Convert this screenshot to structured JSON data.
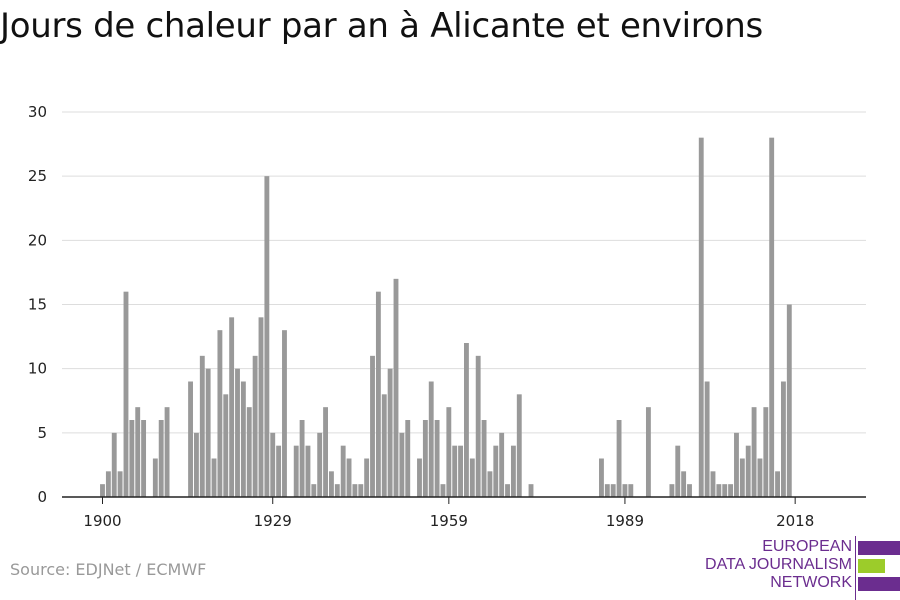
{
  "title": "Jours de chaleur par an à Alicante et environs",
  "source": "Source: EDJNet / ECMWF",
  "logo": {
    "lines": [
      "EUROPEAN",
      "DATA JOURNALISM",
      "NETWORK"
    ],
    "colors": [
      "#6b2d8f",
      "#9ccc2a",
      "#6b2d8f"
    ]
  },
  "chart_data": {
    "type": "bar",
    "title": "Jours de chaleur par an à Alicante et environs",
    "xlabel": "",
    "ylabel": "",
    "x": [
      1900,
      1901,
      1902,
      1903,
      1904,
      1905,
      1906,
      1907,
      1908,
      1909,
      1910,
      1911,
      1912,
      1913,
      1914,
      1915,
      1916,
      1917,
      1918,
      1919,
      1920,
      1921,
      1922,
      1923,
      1924,
      1925,
      1926,
      1927,
      1928,
      1929,
      1930,
      1931,
      1932,
      1933,
      1934,
      1935,
      1936,
      1937,
      1938,
      1939,
      1940,
      1941,
      1942,
      1943,
      1944,
      1945,
      1946,
      1947,
      1948,
      1949,
      1950,
      1951,
      1952,
      1953,
      1954,
      1955,
      1956,
      1957,
      1958,
      1959,
      1960,
      1961,
      1962,
      1963,
      1964,
      1965,
      1966,
      1967,
      1968,
      1969,
      1970,
      1971,
      1972,
      1973,
      1974,
      1975,
      1976,
      1977,
      1978,
      1979,
      1980,
      1981,
      1982,
      1983,
      1984,
      1985,
      1986,
      1987,
      1988,
      1989,
      1990,
      1991,
      1992,
      1993,
      1994,
      1995,
      1996,
      1997,
      1998,
      1999,
      2000,
      2001,
      2002,
      2003,
      2004,
      2005,
      2006,
      2007,
      2008,
      2009,
      2010,
      2011,
      2012,
      2013,
      2014,
      2015,
      2016,
      2017,
      2018,
      2019
    ],
    "values": [
      1,
      2,
      5,
      2,
      16,
      6,
      7,
      6,
      0,
      3,
      6,
      7,
      0,
      0,
      0,
      9,
      5,
      11,
      10,
      3,
      13,
      8,
      14,
      10,
      9,
      7,
      11,
      14,
      25,
      5,
      4,
      13,
      0,
      4,
      6,
      4,
      1,
      5,
      7,
      2,
      1,
      4,
      3,
      1,
      1,
      3,
      11,
      16,
      8,
      10,
      17,
      5,
      6,
      0,
      3,
      6,
      9,
      6,
      1,
      7,
      4,
      4,
      12,
      3,
      11,
      6,
      2,
      4,
      5,
      1,
      4,
      8,
      0,
      1,
      0,
      0,
      0,
      0,
      0,
      0,
      0,
      0,
      0,
      0,
      0,
      3,
      1,
      1,
      6,
      1,
      1,
      0,
      0,
      7,
      0,
      0,
      0,
      1,
      4,
      2,
      1,
      0,
      28,
      9,
      2,
      1,
      1,
      1,
      5,
      3,
      4,
      7,
      3,
      7,
      28,
      2,
      9,
      15,
      0,
      0
    ],
    "ylim": [
      0,
      30
    ],
    "yticks": [
      0,
      5,
      10,
      15,
      20,
      25,
      30
    ],
    "xticks": [
      1900,
      1929,
      1959,
      1989,
      2018
    ],
    "grid": true,
    "bar_color": "#999999"
  }
}
